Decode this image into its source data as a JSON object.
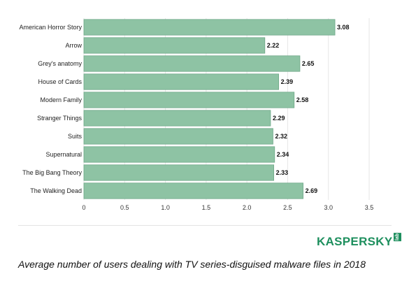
{
  "brand": {
    "logo_text": "KASPERSKY",
    "logo_suffix": "lab",
    "color": "#1e8f5e"
  },
  "caption": "Average number of users dealing with TV series-disguised malware files in 2018",
  "chart_data": {
    "type": "bar",
    "orientation": "horizontal",
    "categories": [
      "American Horror Story",
      "Arrow",
      "Grey's anatomy",
      "House of Cards",
      "Modern Family",
      "Stranger Things",
      "Suits",
      "Supernatural",
      "The Big Bang Theory",
      "The Walking Dead"
    ],
    "values": [
      3.08,
      2.22,
      2.65,
      2.39,
      2.58,
      2.29,
      2.32,
      2.34,
      2.33,
      2.69
    ],
    "value_labels": [
      "3.08",
      "2.22",
      "2.65",
      "2.39",
      "2.58",
      "2.29",
      "2.32",
      "2.34",
      "2.33",
      "2.69"
    ],
    "xlim": [
      0,
      3.5
    ],
    "xticks": [
      0,
      0.5,
      1.0,
      1.5,
      2.0,
      2.5,
      3.0,
      3.5
    ],
    "xtick_labels": [
      "0",
      "0.5",
      "1.0",
      "1.5",
      "2.0",
      "2.5",
      "3.0",
      "3.5"
    ],
    "title": "",
    "xlabel": "",
    "ylabel": "",
    "grid": true,
    "bar_color": "#8ec3a4",
    "bar_edge_color": "#6fa888",
    "grid_color": "#e6e6e6"
  }
}
